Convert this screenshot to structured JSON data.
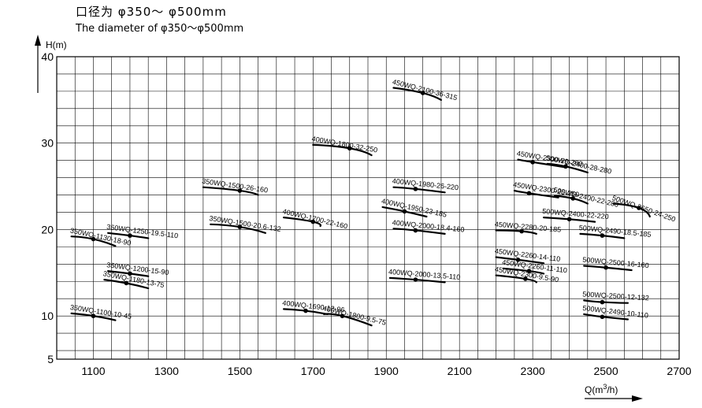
{
  "header": {
    "title_cn": "口径为 φ350～ φ500mm",
    "title_en": "The diameter of φ350～φ500mm"
  },
  "chart_data": {
    "type": "line",
    "title": "口径为 φ350～ φ500mm",
    "subtitle": "The diameter of φ350～φ500mm",
    "xlabel": "Q(m3/h)",
    "ylabel": "H(m)",
    "xlim": [
      1000,
      2700
    ],
    "ylim": [
      5,
      40
    ],
    "x_ticks": [
      1100,
      1300,
      1500,
      1700,
      1900,
      2100,
      2300,
      2500,
      2700
    ],
    "y_ticks": [
      5,
      10,
      20,
      30,
      40
    ],
    "grid": true,
    "colors": {
      "curve": "#000000",
      "grid": "#000000",
      "background": "#ffffff"
    },
    "series": [
      {
        "name": "450WQ-2100-36-315",
        "point": [
          2000,
          35.8
        ],
        "x": [
          1920,
          2050
        ],
        "y": [
          36.4,
          35.0
        ]
      },
      {
        "name": "400WQ-1800-32-250",
        "point": [
          1800,
          29.4
        ],
        "x": [
          1700,
          1860
        ],
        "y": [
          29.8,
          28.6
        ]
      },
      {
        "name": "450WQ-2300-29-280",
        "point": [
          2300,
          27.8
        ],
        "x": [
          2260,
          2390
        ],
        "y": [
          28.1,
          27.2
        ]
      },
      {
        "name": "500WQ-2400-28-280",
        "point": [
          2390,
          27.3
        ],
        "x": [
          2340,
          2450
        ],
        "y": [
          27.6,
          26.6
        ]
      },
      {
        "name": "350WQ-1500-26-160",
        "point": [
          1500,
          24.5
        ],
        "x": [
          1400,
          1550
        ],
        "y": [
          24.9,
          24.0
        ]
      },
      {
        "name": "400WQ-1980-26-220",
        "point": [
          1980,
          24.7
        ],
        "x": [
          1920,
          2060
        ],
        "y": [
          24.9,
          24.3
        ]
      },
      {
        "name": "450WQ-2300-25-250",
        "point": [
          2290,
          24.2
        ],
        "x": [
          2250,
          2370
        ],
        "y": [
          24.5,
          23.7
        ]
      },
      {
        "name": "500WQ-2400-22-280",
        "point": [
          2410,
          23.6
        ],
        "x": [
          2360,
          2450
        ],
        "y": [
          23.9,
          23.0
        ]
      },
      {
        "name": "500WQ-2650-24-250",
        "point": [
          2590,
          22.5
        ],
        "x": [
          2520,
          2620
        ],
        "y": [
          23.0,
          21.5
        ]
      },
      {
        "name": "400WQ-1950-23-185",
        "point": [
          1950,
          22.1
        ],
        "x": [
          1890,
          2010
        ],
        "y": [
          22.6,
          21.5
        ]
      },
      {
        "name": "400WQ-1700-22-160",
        "point": [
          1700,
          20.9
        ],
        "x": [
          1620,
          1720
        ],
        "y": [
          21.4,
          20.4
        ]
      },
      {
        "name": "500WQ-2400-22-220",
        "point": [
          2400,
          21.2
        ],
        "x": [
          2330,
          2470
        ],
        "y": [
          21.4,
          20.9
        ]
      },
      {
        "name": "350WQ-1500-20.6-132",
        "point": [
          1500,
          20.3
        ],
        "x": [
          1420,
          1570
        ],
        "y": [
          20.6,
          19.6
        ]
      },
      {
        "name": "400WQ-2000-18.4-160",
        "point": [
          1980,
          19.9
        ],
        "x": [
          1920,
          2060
        ],
        "y": [
          20.1,
          19.5
        ]
      },
      {
        "name": "450WQ-2280-20-185",
        "point": [
          2270,
          19.8
        ],
        "x": [
          2200,
          2310
        ],
        "y": [
          19.9,
          19.5
        ]
      },
      {
        "name": "500WQ-2490-18.5-185",
        "point": [
          2490,
          19.3
        ],
        "x": [
          2430,
          2550
        ],
        "y": [
          19.5,
          19.0
        ]
      },
      {
        "name": "350WQ-1250-19.5-110",
        "point": [
          1200,
          19.3
        ],
        "x": [
          1140,
          1250
        ],
        "y": [
          19.6,
          19.0
        ]
      },
      {
        "name": "350WQ-1130-18-90",
        "point": [
          1100,
          18.9
        ],
        "x": [
          1040,
          1160
        ],
        "y": [
          19.2,
          18.1
        ]
      },
      {
        "name": "450WQ-2260-14-110",
        "point": [
          2260,
          16.5
        ],
        "x": [
          2200,
          2330
        ],
        "y": [
          16.8,
          16.1
        ]
      },
      {
        "name": "500WQ-2500-16-160",
        "point": [
          2500,
          15.6
        ],
        "x": [
          2440,
          2570
        ],
        "y": [
          15.8,
          15.3
        ]
      },
      {
        "name": "450WQ-2260-11-110",
        "point": [
          2290,
          15.2
        ],
        "x": [
          2220,
          2330
        ],
        "y": [
          15.5,
          14.9
        ]
      },
      {
        "name": "350WQ-1200-15-90",
        "point": [
          1200,
          14.9
        ],
        "x": [
          1140,
          1250
        ],
        "y": [
          15.2,
          14.6
        ]
      },
      {
        "name": "400WQ-2000-13.5-110",
        "point": [
          1980,
          14.2
        ],
        "x": [
          1910,
          2060
        ],
        "y": [
          14.4,
          13.9
        ]
      },
      {
        "name": "450WQ-2300-9.5-90",
        "point": [
          2280,
          14.3
        ],
        "x": [
          2200,
          2310
        ],
        "y": [
          14.7,
          13.9
        ]
      },
      {
        "name": "350WQ-1180-13-75",
        "point": [
          1190,
          13.8
        ],
        "x": [
          1130,
          1250
        ],
        "y": [
          14.2,
          13.2
        ]
      },
      {
        "name": "500WQ-2500-12-132",
        "point": [
          2490,
          11.6
        ],
        "x": [
          2440,
          2560
        ],
        "y": [
          11.8,
          11.5
        ]
      },
      {
        "name": "400WQ-1690-12-96",
        "point": [
          1680,
          10.6
        ],
        "x": [
          1620,
          1740
        ],
        "y": [
          10.8,
          10.2
        ]
      },
      {
        "name": "400WQ-1800-9.5-75",
        "point": [
          1780,
          10.0
        ],
        "x": [
          1730,
          1860
        ],
        "y": [
          10.2,
          8.9
        ]
      },
      {
        "name": "500WQ-2490-10-110",
        "point": [
          2490,
          9.9
        ],
        "x": [
          2440,
          2560
        ],
        "y": [
          10.2,
          9.6
        ]
      },
      {
        "name": "350WQ-1100-10-45",
        "point": [
          1100,
          10.0
        ],
        "x": [
          1040,
          1160
        ],
        "y": [
          10.3,
          9.5
        ]
      }
    ]
  }
}
